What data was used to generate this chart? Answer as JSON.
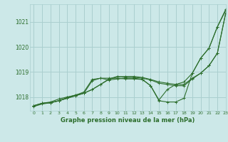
{
  "bg_color": "#cce8e8",
  "grid_color": "#aacfcf",
  "line_color": "#2d6e2d",
  "text_color": "#2d6e2d",
  "xlabel": "Graphe pression niveau de la mer (hPa)",
  "xlim": [
    -0.5,
    23
  ],
  "ylim": [
    1017.45,
    1021.7
  ],
  "yticks": [
    1018,
    1019,
    1020,
    1021
  ],
  "xticks": [
    0,
    1,
    2,
    3,
    4,
    5,
    6,
    7,
    8,
    9,
    10,
    11,
    12,
    13,
    14,
    15,
    16,
    17,
    18,
    19,
    20,
    21,
    22,
    23
  ],
  "series": [
    [
      1017.65,
      1017.75,
      1017.77,
      1017.85,
      1017.95,
      1018.05,
      1018.15,
      1018.3,
      1018.5,
      1018.7,
      1018.8,
      1018.82,
      1018.82,
      1018.78,
      1018.7,
      1018.6,
      1018.55,
      1018.5,
      1018.5,
      1018.75,
      1018.95,
      1019.25,
      1019.75,
      1021.35
    ],
    [
      1017.65,
      1017.75,
      1017.77,
      1017.85,
      1017.95,
      1018.05,
      1018.15,
      1018.65,
      1018.75,
      1018.68,
      1018.72,
      1018.75,
      1018.75,
      1018.7,
      1018.45,
      1017.85,
      1017.8,
      1017.8,
      1017.95,
      1018.95,
      1019.55,
      1019.95,
      1020.8,
      1021.5
    ],
    [
      1017.65,
      1017.75,
      1017.8,
      1017.92,
      1018.0,
      1018.07,
      1018.2,
      1018.7,
      1018.75,
      1018.75,
      1018.75,
      1018.72,
      1018.72,
      1018.7,
      1018.45,
      1017.88,
      1018.3,
      1018.5,
      1018.6,
      1018.95,
      1019.55,
      1019.95,
      1020.8,
      1021.45
    ],
    [
      1017.62,
      1017.72,
      1017.77,
      1017.85,
      1017.98,
      1018.08,
      1018.15,
      1018.3,
      1018.5,
      1018.72,
      1018.82,
      1018.78,
      1018.78,
      1018.75,
      1018.68,
      1018.55,
      1018.5,
      1018.45,
      1018.45,
      1018.72,
      1018.95,
      1019.25,
      1019.75,
      1021.35
    ]
  ]
}
